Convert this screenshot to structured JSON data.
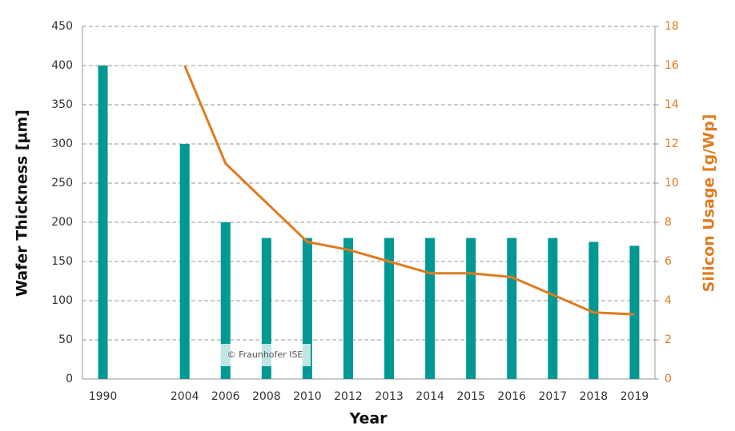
{
  "chart_data": {
    "type": "bar",
    "categories": [
      "1990",
      null,
      "2004",
      "2006",
      "2008",
      "2010",
      "2012",
      "2013",
      "2014",
      "2015",
      "2016",
      "2017",
      "2018",
      "2019"
    ],
    "series": [
      {
        "name": "Wafer Thickness",
        "color": "#009894",
        "values": [
          400,
          null,
          300,
          200,
          180,
          180,
          180,
          180,
          180,
          180,
          180,
          180,
          175,
          170
        ]
      },
      {
        "name": "Silicon Usage",
        "color": "#e07b1f",
        "axis": "y2",
        "type": "line",
        "values": [
          null,
          null,
          16,
          11,
          9,
          7,
          6.6,
          6,
          5.4,
          5.4,
          5.2,
          4.3,
          3.4,
          3.3
        ]
      }
    ],
    "xlabel": "Year",
    "ylabel": "Wafer Thickness [µm]",
    "y2label": "Silicon Usage [g/Wp]",
    "ylim": [
      0,
      450
    ],
    "yticks": [
      0,
      50,
      100,
      150,
      200,
      250,
      300,
      350,
      400,
      450
    ],
    "y2lim": [
      0,
      18
    ],
    "y2ticks": [
      0,
      2,
      4,
      6,
      8,
      10,
      12,
      14,
      16,
      18
    ],
    "grid": true,
    "annotation": "© Fraunhofer ISE"
  }
}
